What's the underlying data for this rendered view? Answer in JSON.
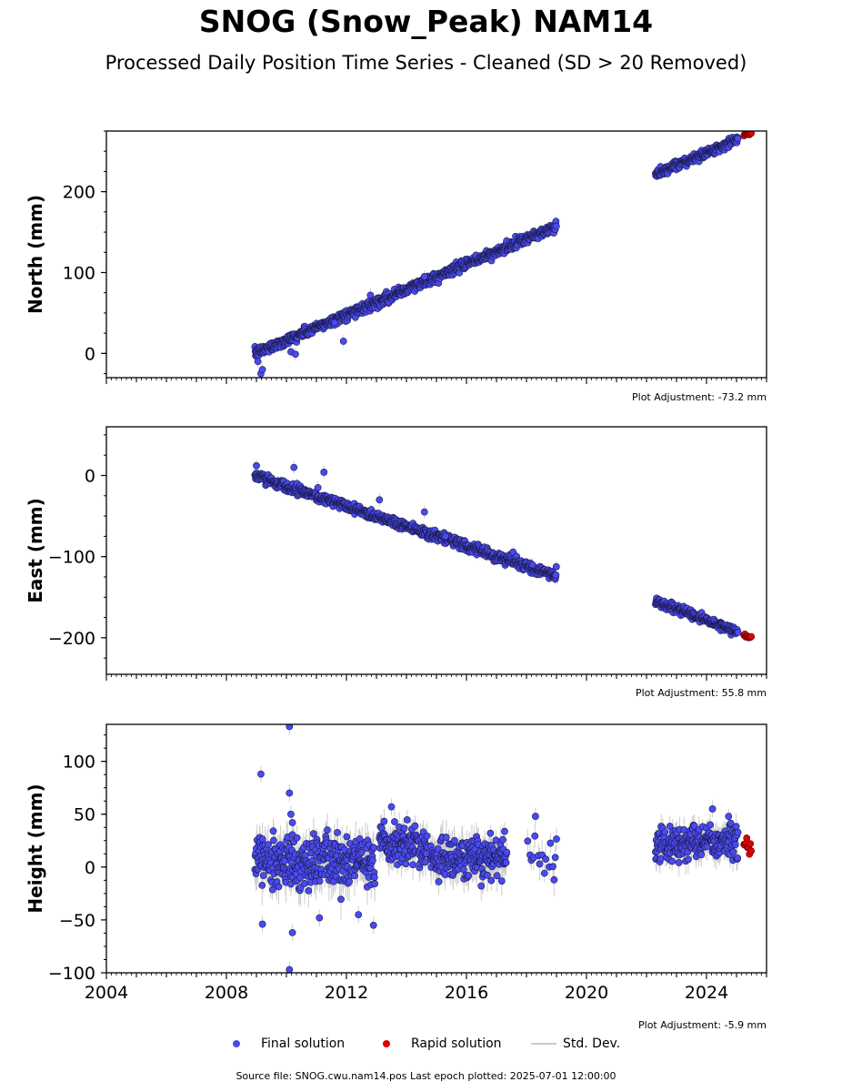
{
  "title": "SNOG (Snow_Peak) NAM14",
  "subtitle": "Processed Daily Position Time Series - Cleaned (SD > 20 Removed)",
  "footer": "Source file: SNOG.cwu.nam14.pos  Last epoch plotted: 2025-07-01 12:00:00",
  "colors": {
    "final": "#4a4af0",
    "final_edge": "#1a1a4a",
    "rapid": "#e00000",
    "stddev": "#cccccc"
  },
  "legend": {
    "final": "Final solution",
    "rapid": "Rapid solution",
    "stddev": "Std. Dev."
  },
  "chart_data": {
    "type": "scatter",
    "x_axis": {
      "range": [
        2004,
        2026
      ],
      "ticks": [
        "2004",
        "2008",
        "2012",
        "2016",
        "2020",
        "2024"
      ]
    },
    "panels": [
      {
        "ylabel": "North (mm)",
        "ylim": [
          -30,
          275
        ],
        "yticks": [
          "0",
          "100",
          "200"
        ],
        "adjustment": "Plot Adjustment: -73.2 mm",
        "segments": [
          {
            "x0": 2008.95,
            "x1": 2019.0,
            "y0": 0,
            "y1": 157,
            "noise": 3
          },
          {
            "x0": 2022.3,
            "x1": 2025.05,
            "y0": 221,
            "y1": 265,
            "noise": 2.5
          }
        ],
        "outliers": [
          [
            2009.05,
            -10
          ],
          [
            2009.15,
            -25
          ],
          [
            2009.2,
            -20
          ],
          [
            2010.15,
            2
          ],
          [
            2010.3,
            -1
          ],
          [
            2011.6,
            38
          ],
          [
            2011.9,
            15
          ],
          [
            2012.8,
            72
          ],
          [
            2014.6,
            95
          ]
        ],
        "rapid": {
          "x0": 2025.25,
          "x1": 2025.5,
          "y0": 270,
          "y1": 272
        }
      },
      {
        "ylabel": "East (mm)",
        "ylim": [
          -245,
          60
        ],
        "yticks": [
          "0",
          "−100",
          "−200"
        ],
        "adjustment": "Plot Adjustment: 55.8 mm",
        "segments": [
          {
            "x0": 2008.95,
            "x1": 2019.0,
            "y0": 0,
            "y1": -124,
            "noise": 3
          },
          {
            "x0": 2022.3,
            "x1": 2025.05,
            "y0": -155,
            "y1": -193,
            "noise": 2.5
          }
        ],
        "outliers": [
          [
            2009.0,
            12
          ],
          [
            2010.25,
            10
          ],
          [
            2011.25,
            4
          ],
          [
            2011.05,
            -15
          ],
          [
            2013.1,
            -30
          ],
          [
            2014.6,
            -45
          ],
          [
            2015.3,
            -75
          ],
          [
            2018.2,
            -110
          ]
        ],
        "rapid": {
          "x0": 2025.25,
          "x1": 2025.5,
          "y0": -197,
          "y1": -200
        }
      },
      {
        "ylabel": "Height (mm)",
        "ylim": [
          -100,
          135
        ],
        "yticks": [
          "−100",
          "−50",
          "0",
          "50",
          "100"
        ],
        "adjustment": "Plot Adjustment: -5.9 mm",
        "segments": [
          {
            "x0": 2008.95,
            "x1": 2012.95,
            "y0": 5,
            "y1": 5,
            "noise": 12
          },
          {
            "x0": 2013.1,
            "x1": 2014.7,
            "y0": 22,
            "y1": 18,
            "noise": 9
          },
          {
            "x0": 2014.8,
            "x1": 2017.35,
            "y0": 8,
            "y1": 10,
            "noise": 10
          },
          {
            "x0": 2018.0,
            "x1": 2019.0,
            "y0": 15,
            "y1": 10,
            "noise": 10,
            "sparse": true
          },
          {
            "x0": 2022.3,
            "x1": 2025.05,
            "y0": 22,
            "y1": 25,
            "noise": 8
          }
        ],
        "outliers": [
          [
            2009.15,
            88
          ],
          [
            2009.2,
            -54
          ],
          [
            2010.1,
            133
          ],
          [
            2010.1,
            70
          ],
          [
            2010.15,
            50
          ],
          [
            2010.2,
            42
          ],
          [
            2010.2,
            -62
          ],
          [
            2010.1,
            -97
          ],
          [
            2011.1,
            -48
          ],
          [
            2012.4,
            -45
          ],
          [
            2012.9,
            -55
          ],
          [
            2013.5,
            57
          ],
          [
            2016.8,
            32
          ],
          [
            2018.3,
            48
          ],
          [
            2024.2,
            55
          ]
        ],
        "rapid": {
          "x0": 2025.25,
          "x1": 2025.5,
          "y0": 20,
          "y1": 18
        }
      }
    ],
    "series": [
      {
        "name": "Final solution"
      },
      {
        "name": "Rapid solution"
      },
      {
        "name": "Std. Dev."
      }
    ]
  }
}
